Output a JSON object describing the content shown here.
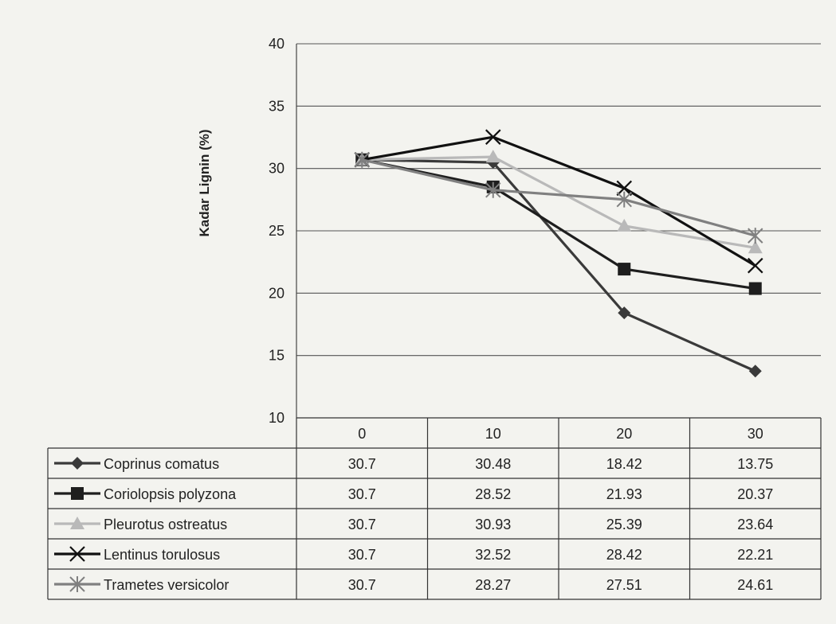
{
  "chart_data": {
    "type": "line",
    "title": "",
    "xlabel": "",
    "ylabel": "Kadar Lignin (%)",
    "categories": [
      "0",
      "10",
      "20",
      "30"
    ],
    "ylim": [
      10,
      40
    ],
    "yticks": [
      "10",
      "15",
      "20",
      "25",
      "30",
      "35",
      "40"
    ],
    "grid": "horizontal",
    "legend": "data-table-below",
    "series": [
      {
        "name": "Coprinus comatus",
        "values": [
          30.7,
          30.48,
          18.42,
          13.75
        ],
        "labels": [
          "30.7",
          "30.48",
          "18.42",
          "13.75"
        ],
        "color": "#3a3a3a",
        "marker": "diamond"
      },
      {
        "name": "Coriolopsis polyzona",
        "values": [
          30.7,
          28.52,
          21.93,
          20.37
        ],
        "labels": [
          "30.7",
          "28.52",
          "21.93",
          "20.37"
        ],
        "color": "#1e1e1e",
        "marker": "square"
      },
      {
        "name": "Pleurotus ostreatus",
        "values": [
          30.7,
          30.93,
          25.39,
          23.64
        ],
        "labels": [
          "30.7",
          "30.93",
          "25.39",
          "23.64"
        ],
        "color": "#b9b9b9",
        "marker": "triangle"
      },
      {
        "name": "Lentinus torulosus",
        "values": [
          30.7,
          32.52,
          28.42,
          22.21
        ],
        "labels": [
          "30.7",
          "32.52",
          "28.42",
          "22.21"
        ],
        "color": "#111111",
        "marker": "x"
      },
      {
        "name": "Trametes versicolor",
        "values": [
          30.7,
          28.27,
          27.51,
          24.61
        ],
        "labels": [
          "30.7",
          "28.27",
          "27.51",
          "24.61"
        ],
        "color": "#808080",
        "marker": "star"
      }
    ]
  }
}
